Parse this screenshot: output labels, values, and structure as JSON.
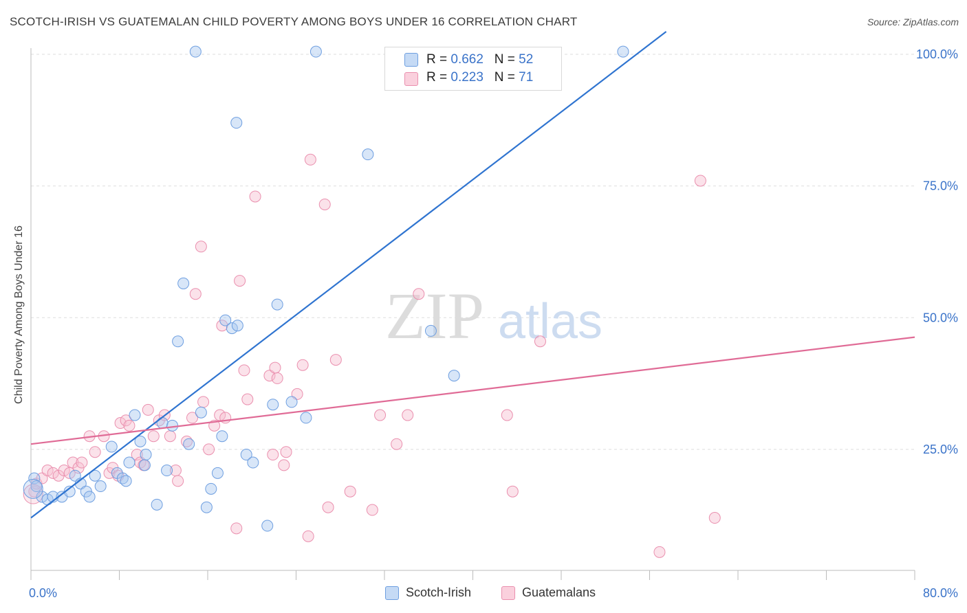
{
  "header": {
    "title": "SCOTCH-IRISH VS GUATEMALAN CHILD POVERTY AMONG BOYS UNDER 16 CORRELATION CHART",
    "source": "Source: ZipAtlas.com"
  },
  "watermark": {
    "zip": "ZIP",
    "atlas": "atlas"
  },
  "legend": {
    "rows": [
      {
        "r_label": "R = ",
        "r_value": "0.662",
        "n_label": "N = ",
        "n_value": "52"
      },
      {
        "r_label": "R = ",
        "r_value": "0.223",
        "n_label": "N = ",
        "n_value": "71"
      }
    ]
  },
  "colors": {
    "blue_fill": "#a9c8f0",
    "blue_stroke": "#6d9ee0",
    "blue_line": "#2f74d0",
    "pink_fill": "#f6bfd0",
    "pink_stroke": "#ea8fae",
    "pink_line": "#e06b96",
    "tick_label": "#3a73c9",
    "grid": "#dedede"
  },
  "chart_data": {
    "type": "scatter",
    "title": "SCOTCH-IRISH VS GUATEMALAN CHILD POVERTY AMONG BOYS UNDER 16 CORRELATION CHART",
    "xlabel": "",
    "ylabel": "Child Poverty Among Boys Under 16",
    "xlim": [
      0,
      80
    ],
    "ylim": [
      0,
      105
    ],
    "x_tick_labels": [
      "0.0%",
      "80.0%"
    ],
    "y_ticks": [
      25,
      50,
      75,
      100
    ],
    "y_tick_labels": [
      "25.0%",
      "50.0%",
      "75.0%",
      "100.0%"
    ],
    "grid": true,
    "legend_position": "top-center",
    "series": [
      {
        "name": "Scotch-Irish",
        "color": "#6d9ee0",
        "r": 0.662,
        "n": 52,
        "trend": [
          [
            0,
            12.0
          ],
          [
            57.5,
            104.3
          ]
        ],
        "points": [
          [
            0.3,
            19.5
          ],
          [
            0.5,
            18
          ],
          [
            1,
            16
          ],
          [
            1.5,
            15.5
          ],
          [
            2,
            16
          ],
          [
            2.8,
            16
          ],
          [
            3.5,
            17
          ],
          [
            4,
            20
          ],
          [
            4.5,
            18.5
          ],
          [
            5,
            17
          ],
          [
            5.3,
            16
          ],
          [
            5.8,
            20
          ],
          [
            6.3,
            18
          ],
          [
            7.3,
            25.5
          ],
          [
            7.8,
            20.5
          ],
          [
            8.3,
            19.5
          ],
          [
            8.6,
            19
          ],
          [
            8.9,
            22.5
          ],
          [
            9.4,
            31.5
          ],
          [
            9.9,
            26.5
          ],
          [
            10.4,
            24
          ],
          [
            10.3,
            22
          ],
          [
            11.4,
            14.5
          ],
          [
            11.9,
            30
          ],
          [
            12.3,
            21
          ],
          [
            12.8,
            29.5
          ],
          [
            13.3,
            45.5
          ],
          [
            13.8,
            56.5
          ],
          [
            14.3,
            26
          ],
          [
            15.4,
            32
          ],
          [
            15.9,
            14
          ],
          [
            16.3,
            17.5
          ],
          [
            16.9,
            20.5
          ],
          [
            17.3,
            27.5
          ],
          [
            17.6,
            49.5
          ],
          [
            18.2,
            48
          ],
          [
            18.7,
            48.5
          ],
          [
            19.5,
            24
          ],
          [
            20.1,
            22.5
          ],
          [
            21.4,
            10.5
          ],
          [
            21.9,
            33.5
          ],
          [
            22.3,
            52.5
          ],
          [
            23.6,
            34
          ],
          [
            24.9,
            31
          ],
          [
            14.9,
            100.5
          ],
          [
            18.6,
            87
          ],
          [
            25.8,
            100.5
          ],
          [
            30.5,
            81
          ],
          [
            36.2,
            47.5
          ],
          [
            38.3,
            39
          ],
          [
            53.6,
            100.5
          ],
          [
            0.2,
            17.5
          ]
        ]
      },
      {
        "name": "Guatemalans",
        "color": "#ea8fae",
        "r": 0.223,
        "n": 71,
        "trend": [
          [
            0,
            26.0
          ],
          [
            80,
            46.3
          ]
        ],
        "points": [
          [
            0.3,
            17
          ],
          [
            0.5,
            18.5
          ],
          [
            1,
            19.5
          ],
          [
            1.5,
            21
          ],
          [
            2,
            20.5
          ],
          [
            2.5,
            20
          ],
          [
            3,
            21
          ],
          [
            3.5,
            20.5
          ],
          [
            3.8,
            22.5
          ],
          [
            4.3,
            21.5
          ],
          [
            4.6,
            22.5
          ],
          [
            5.3,
            27.5
          ],
          [
            5.8,
            24.5
          ],
          [
            6.6,
            27.5
          ],
          [
            7.1,
            20.5
          ],
          [
            7.4,
            21.5
          ],
          [
            7.9,
            20
          ],
          [
            8.1,
            30
          ],
          [
            8.6,
            30.5
          ],
          [
            8.9,
            29.5
          ],
          [
            9.6,
            24
          ],
          [
            9.9,
            22.5
          ],
          [
            10.2,
            22
          ],
          [
            10.6,
            32.5
          ],
          [
            11.1,
            27.5
          ],
          [
            11.6,
            30.5
          ],
          [
            12.1,
            31.5
          ],
          [
            12.6,
            27.5
          ],
          [
            13.1,
            21
          ],
          [
            13.3,
            19
          ],
          [
            14.1,
            26.5
          ],
          [
            14.6,
            31
          ],
          [
            14.9,
            54.5
          ],
          [
            15.4,
            63.5
          ],
          [
            15.6,
            34
          ],
          [
            16.1,
            25
          ],
          [
            16.6,
            29.5
          ],
          [
            17.1,
            31.5
          ],
          [
            17.3,
            48.5
          ],
          [
            17.6,
            31
          ],
          [
            18.6,
            10
          ],
          [
            18.9,
            57
          ],
          [
            19.3,
            40
          ],
          [
            19.6,
            34.5
          ],
          [
            20.3,
            73
          ],
          [
            21.6,
            39
          ],
          [
            21.9,
            24
          ],
          [
            22.1,
            40.5
          ],
          [
            22.3,
            38.5
          ],
          [
            22.9,
            22
          ],
          [
            23.1,
            24.5
          ],
          [
            24.1,
            35.5
          ],
          [
            24.6,
            41
          ],
          [
            25.1,
            8.5
          ],
          [
            25.3,
            80
          ],
          [
            26.6,
            71.5
          ],
          [
            26.9,
            14
          ],
          [
            27.6,
            42
          ],
          [
            28.9,
            17
          ],
          [
            30.9,
            13.5
          ],
          [
            31.6,
            31.5
          ],
          [
            33.1,
            26
          ],
          [
            34.1,
            31.5
          ],
          [
            35.1,
            54.5
          ],
          [
            43.1,
            31.5
          ],
          [
            43.6,
            17
          ],
          [
            46.1,
            45.5
          ],
          [
            56.9,
            5.5
          ],
          [
            60.6,
            76
          ],
          [
            61.9,
            12
          ],
          [
            0.2,
            16.5
          ]
        ]
      }
    ]
  },
  "bottom_legend": [
    {
      "label": "Scotch-Irish"
    },
    {
      "label": "Guatemalans"
    }
  ]
}
